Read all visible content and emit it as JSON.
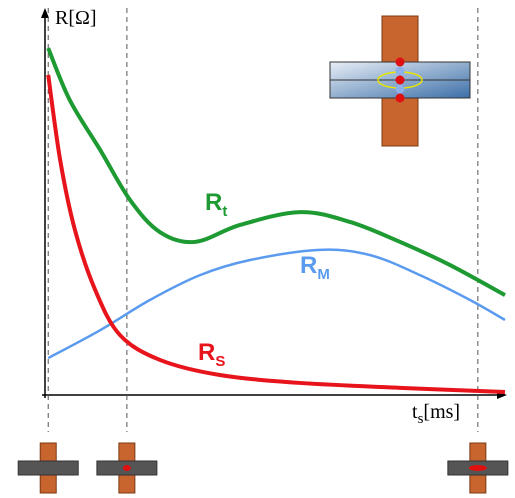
{
  "chart_data": {
    "type": "line",
    "y_label": "R[Ω]",
    "x_label": {
      "main": "t",
      "sub": "s",
      "unit": "[ms]"
    },
    "xlim": [
      0,
      100
    ],
    "ylim": [
      0,
      100
    ],
    "markers_x": [
      0.7,
      17.8,
      94.1
    ],
    "series": [
      {
        "name": "R",
        "subscript": "t",
        "color": "#1e9a33",
        "x": [
          0.7,
          5.4,
          12.0,
          18.5,
          25.0,
          32.6,
          42.4,
          55.4,
          66.3,
          77.2,
          88.0,
          100
        ],
        "values": [
          92,
          78.2,
          65,
          51.7,
          43.2,
          40.6,
          45.1,
          48.5,
          45.9,
          40.6,
          34.5,
          26.5
        ]
      },
      {
        "name": "R",
        "subscript": "M",
        "color": "#5b9bef",
        "x": [
          0.7,
          12.0,
          22.8,
          33.7,
          44.6,
          59.8,
          70.7,
          81.5,
          92.4,
          100
        ],
        "values": [
          9.8,
          17.2,
          25.2,
          31.8,
          35.8,
          38.5,
          37.1,
          31.8,
          25.2,
          19.9
        ]
      },
      {
        "name": "R",
        "subscript": "S",
        "color": "#e8141c",
        "x": [
          0.7,
          3.3,
          6.5,
          10.9,
          16.3,
          25.0,
          38.0,
          55.4,
          77.2,
          100
        ],
        "values": [
          84.9,
          62.3,
          43.8,
          27.9,
          15.9,
          9.3,
          5.3,
          3.2,
          1.9,
          0.8
        ]
      }
    ]
  }
}
